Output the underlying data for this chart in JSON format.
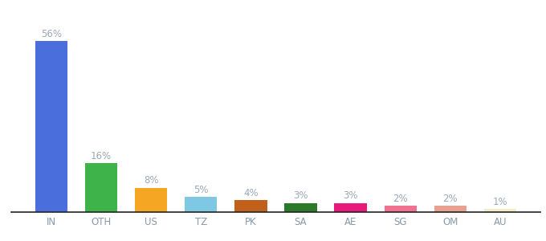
{
  "categories": [
    "IN",
    "OTH",
    "US",
    "TZ",
    "PK",
    "SA",
    "AE",
    "SG",
    "OM",
    "AU"
  ],
  "values": [
    56,
    16,
    8,
    5,
    4,
    3,
    3,
    2,
    2,
    1
  ],
  "bar_colors": [
    "#4a6fdc",
    "#3db34a",
    "#f5a623",
    "#7ec8e3",
    "#c1601a",
    "#2a7a2a",
    "#e8197a",
    "#f07090",
    "#e8a090",
    "#f0edc8"
  ],
  "label_color": "#9aA8b8",
  "x_tick_color": "#8899aa",
  "background_color": "#ffffff",
  "ylim": [
    0,
    64
  ],
  "label_fontsize": 8.5,
  "tick_fontsize": 8.5,
  "bar_width": 0.65,
  "bottom_spine_color": "#222222"
}
